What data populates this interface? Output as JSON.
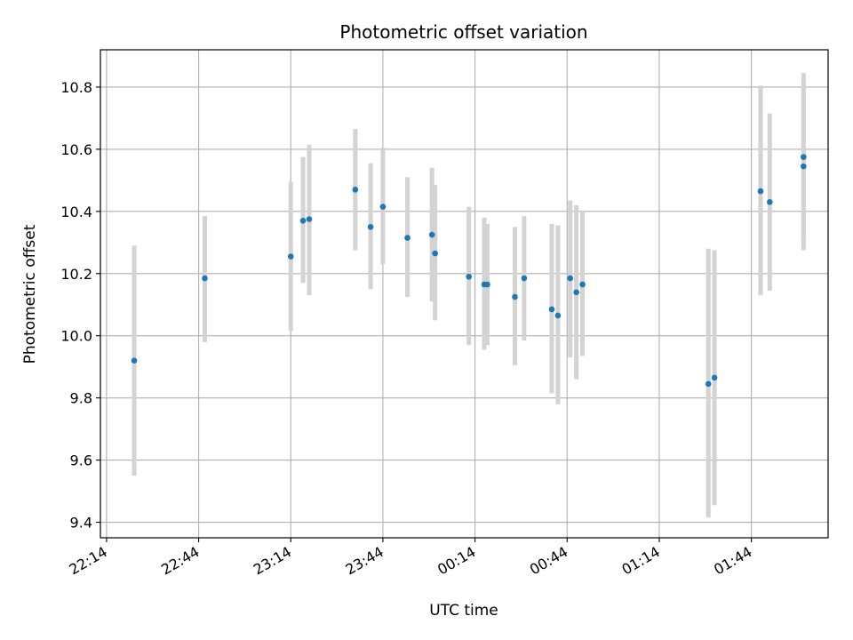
{
  "chart_data": {
    "type": "scatter",
    "title": "Photometric offset variation",
    "xlabel": "UTC time",
    "ylabel": "Photometric offset",
    "grid": true,
    "x_ticks": [
      "22:14",
      "22:44",
      "23:14",
      "23:44",
      "00:14",
      "00:44",
      "01:14",
      "01:44"
    ],
    "x_tick_minutes": [
      0,
      30,
      60,
      90,
      120,
      150,
      180,
      210
    ],
    "xlim_minutes": [
      -2,
      235
    ],
    "y_ticks": [
      "9.4",
      "9.6",
      "9.8",
      "10.0",
      "10.2",
      "10.4",
      "10.6",
      "10.8"
    ],
    "ylim": [
      9.35,
      10.92
    ],
    "colors": {
      "point": "#1f77b4",
      "errorbar": "#d3d3d3"
    },
    "series": [
      {
        "x": [
          "22:23",
          "22:46",
          "23:14",
          "23:18",
          "23:20",
          "23:35",
          "23:40",
          "23:44",
          "23:52",
          "24:00",
          "24:01",
          "24:12",
          "24:17",
          "24:18",
          "24:27",
          "24:30",
          "24:39",
          "24:41",
          "24:45",
          "24:47",
          "24:49",
          "25:30",
          "25:32",
          "25:47",
          "25:50",
          "26:01",
          "26:01"
        ],
        "y": [
          9.92,
          10.185,
          10.255,
          10.37,
          10.375,
          10.47,
          10.35,
          10.415,
          10.315,
          10.325,
          10.265,
          10.19,
          10.165,
          10.165,
          10.125,
          10.185,
          10.085,
          10.065,
          10.185,
          10.14,
          10.165,
          9.845,
          9.865,
          10.465,
          10.43,
          10.545,
          10.575
        ],
        "err_low": [
          9.55,
          9.98,
          10.015,
          10.17,
          10.13,
          10.275,
          10.15,
          10.23,
          10.125,
          10.11,
          10.05,
          9.97,
          9.955,
          9.97,
          9.905,
          9.985,
          9.815,
          9.78,
          9.93,
          9.86,
          9.935,
          9.415,
          9.455,
          10.13,
          10.145,
          10.275,
          10.305
        ],
        "err_high": [
          10.29,
          10.385,
          10.495,
          10.575,
          10.615,
          10.665,
          10.555,
          10.605,
          10.51,
          10.54,
          10.485,
          10.415,
          10.38,
          10.36,
          10.35,
          10.385,
          10.36,
          10.355,
          10.435,
          10.42,
          10.4,
          10.28,
          10.275,
          10.805,
          10.715,
          10.805,
          10.845
        ]
      }
    ]
  }
}
